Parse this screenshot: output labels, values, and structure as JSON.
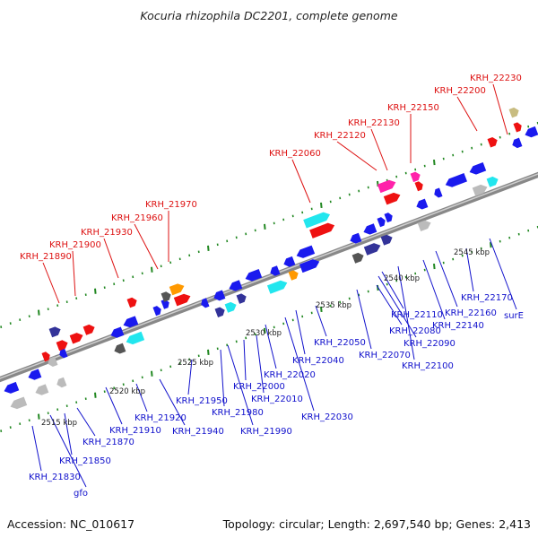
{
  "title": "Kocuria rhizophila DC2201, complete genome",
  "footer": {
    "accession": "Accession: NC_010617",
    "summary": "Topology: circular; Length: 2,697,540 bp; Genes: 2,413"
  },
  "colors": {
    "forward_label": "#dd1111",
    "reverse_label": "#1111cc",
    "backbone": "#999999",
    "tick": "#228822",
    "gene_blue": "#1a1aee",
    "gene_red": "#ee1111",
    "gene_cyan": "#22e6ee",
    "gene_navy": "#333399",
    "gene_orange": "#ff9900",
    "gene_magenta": "#ff22aa",
    "gene_gray": "#bbbbbb",
    "gene_darkgray": "#555555",
    "gene_khaki": "#c8bc80"
  },
  "kbp_labels": [
    "2515 kbp",
    "2520 kbp",
    "2525 kbp",
    "2530 kbp",
    "2535 kbp",
    "2540 kbp",
    "2545 kbp"
  ],
  "top_labels": [
    "KRH_21890",
    "KRH_21900",
    "KRH_21930",
    "KRH_21960",
    "KRH_21970",
    "KRH_22060",
    "KRH_22120",
    "KRH_22130",
    "KRH_22150",
    "KRH_22200",
    "KRH_22230"
  ],
  "bottom_labels": [
    "KRH_21830",
    "gfo",
    "KRH_21850",
    "KRH_21870",
    "KRH_21910",
    "KRH_21920",
    "KRH_21940",
    "KRH_21950",
    "KRH_21980",
    "KRH_21990",
    "KRH_22000",
    "KRH_22010",
    "KRH_22020",
    "KRH_22030",
    "KRH_22040",
    "KRH_22050",
    "KRH_22070",
    "KRH_22080",
    "KRH_22090",
    "KRH_22100",
    "KRH_22110",
    "KRH_22140",
    "KRH_22160",
    "KRH_22170",
    "surE"
  ]
}
